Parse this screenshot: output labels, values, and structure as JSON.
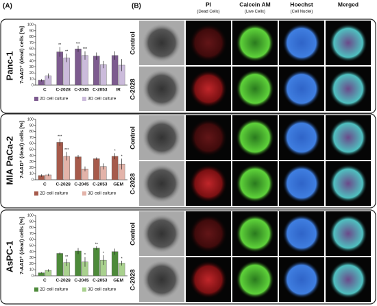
{
  "panel_a_label": "(A)",
  "panel_b": {
    "label": "(B)",
    "columns": [
      {
        "title": "PI",
        "subtitle": "(Dead Cells)"
      },
      {
        "title": "Calcein AM",
        "subtitle": "(Live Cells)"
      },
      {
        "title": "Hoechst",
        "subtitle": "(Cell Nuclei)"
      },
      {
        "title": "Merged"
      }
    ],
    "rows": [
      "Control",
      "C-2028"
    ]
  },
  "chart_data": [
    {
      "type": "bar",
      "cell_line": "Panc-1",
      "y_label": "7-AAD⁺ (dead) cells [%]",
      "categories": [
        "C",
        "C-2028",
        "C-2045",
        "C-2053",
        "IR"
      ],
      "ylim": [
        0,
        100
      ],
      "yticks": [
        0,
        10,
        20,
        30,
        40,
        50,
        60,
        70,
        80,
        90,
        100
      ],
      "grid": false,
      "series": [
        {
          "name": "2D cell culture",
          "color": "#7d5b8f",
          "values": [
            8,
            55,
            60,
            48,
            49
          ],
          "errors": [
            2,
            8,
            5,
            6,
            7
          ],
          "stars": [
            null,
            "**",
            "***",
            null,
            null
          ]
        },
        {
          "name": "3D cell culture",
          "color": "#cbbbdb",
          "values": [
            15,
            45,
            49,
            34,
            33
          ],
          "errors": [
            4,
            7,
            7,
            6,
            10
          ],
          "stars": [
            null,
            "**",
            "***",
            null,
            null
          ]
        }
      ]
    },
    {
      "type": "bar",
      "cell_line": "MIA PaCa-2",
      "y_label": "7-AAD⁺ (dead) cells [%]",
      "categories": [
        "C",
        "C-2028",
        "C-2045",
        "C-2053",
        "GEM"
      ],
      "ylim": [
        0,
        100
      ],
      "yticks": [
        0,
        10,
        20,
        30,
        40,
        50,
        60,
        70,
        80,
        90,
        100
      ],
      "grid": false,
      "series": [
        {
          "name": "2D cell culture",
          "color": "#a65a4b",
          "values": [
            7,
            62,
            38,
            35,
            39
          ],
          "errors": [
            2,
            6,
            3,
            2,
            5
          ],
          "stars": [
            null,
            "***",
            null,
            null,
            "*"
          ]
        },
        {
          "name": "3D cell culture",
          "color": "#e3b3a9",
          "values": [
            8,
            39,
            18,
            22,
            26
          ],
          "errors": [
            2,
            7,
            4,
            5,
            9
          ],
          "stars": [
            null,
            "***",
            null,
            null,
            "*"
          ]
        }
      ]
    },
    {
      "type": "bar",
      "cell_line": "AsPC-1",
      "y_label": "7-AAD⁺ (dead) cells [%]",
      "categories": [
        "C",
        "C-2028",
        "C-2045",
        "C-2053",
        "GEM"
      ],
      "ylim": [
        0,
        100
      ],
      "yticks": [
        0,
        10,
        20,
        30,
        40,
        50,
        60,
        70,
        80,
        90,
        100
      ],
      "grid": false,
      "series": [
        {
          "name": "2D cell culture",
          "color": "#4d8a3a",
          "values": [
            5,
            37,
            41,
            46,
            40
          ],
          "errors": [
            1,
            2,
            5,
            3,
            5
          ],
          "stars": [
            null,
            null,
            null,
            "**",
            null
          ]
        },
        {
          "name": "3D cell culture",
          "color": "#a9d18e",
          "values": [
            9,
            22,
            23,
            26,
            21
          ],
          "errors": [
            2,
            6,
            8,
            8,
            4
          ],
          "stars": [
            null,
            "**",
            "*",
            "*",
            "*"
          ]
        }
      ]
    }
  ]
}
